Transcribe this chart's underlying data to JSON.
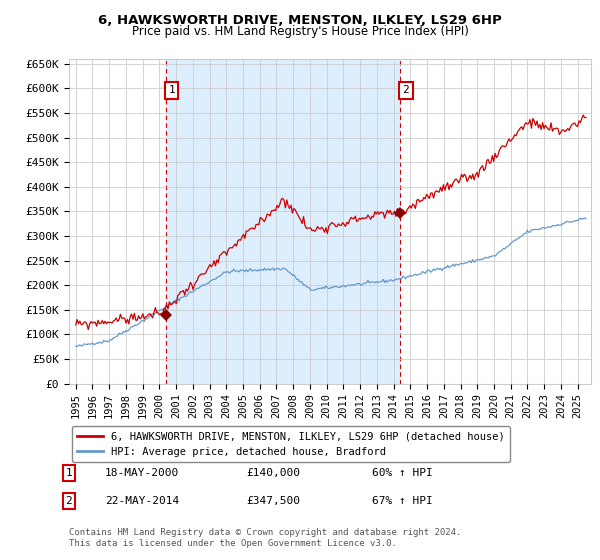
{
  "title": "6, HAWKSWORTH DRIVE, MENSTON, ILKLEY, LS29 6HP",
  "subtitle": "Price paid vs. HM Land Registry's House Price Index (HPI)",
  "ylim": [
    0,
    660000
  ],
  "yticks": [
    0,
    50000,
    100000,
    150000,
    200000,
    250000,
    300000,
    350000,
    400000,
    450000,
    500000,
    550000,
    600000,
    650000
  ],
  "ytick_labels": [
    "£0",
    "£50K",
    "£100K",
    "£150K",
    "£200K",
    "£250K",
    "£300K",
    "£350K",
    "£400K",
    "£450K",
    "£500K",
    "£550K",
    "£600K",
    "£650K"
  ],
  "xlim_start": 1994.6,
  "xlim_end": 2025.8,
  "xtick_years": [
    1995,
    1996,
    1997,
    1998,
    1999,
    2000,
    2001,
    2002,
    2003,
    2004,
    2005,
    2006,
    2007,
    2008,
    2009,
    2010,
    2011,
    2012,
    2013,
    2014,
    2015,
    2016,
    2017,
    2018,
    2019,
    2020,
    2021,
    2022,
    2023,
    2024,
    2025
  ],
  "sale1_x": 2000.38,
  "sale1_y": 140000,
  "sale1_label": "1",
  "sale2_x": 2014.38,
  "sale2_y": 347500,
  "sale2_label": "2",
  "property_color": "#cc0000",
  "hpi_color": "#6699cc",
  "hpi_fill_color": "#ddeeff",
  "grid_color": "#cccccc",
  "sale_vline_color": "#cc0000",
  "background_color": "#ffffff",
  "legend_label_property": "6, HAWKSWORTH DRIVE, MENSTON, ILKLEY, LS29 6HP (detached house)",
  "legend_label_hpi": "HPI: Average price, detached house, Bradford",
  "annotation1_date": "18-MAY-2000",
  "annotation1_price": "£140,000",
  "annotation1_hpi": "60% ↑ HPI",
  "annotation2_date": "22-MAY-2014",
  "annotation2_price": "£347,500",
  "annotation2_hpi": "67% ↑ HPI",
  "footnote": "Contains HM Land Registry data © Crown copyright and database right 2024.\nThis data is licensed under the Open Government Licence v3.0."
}
